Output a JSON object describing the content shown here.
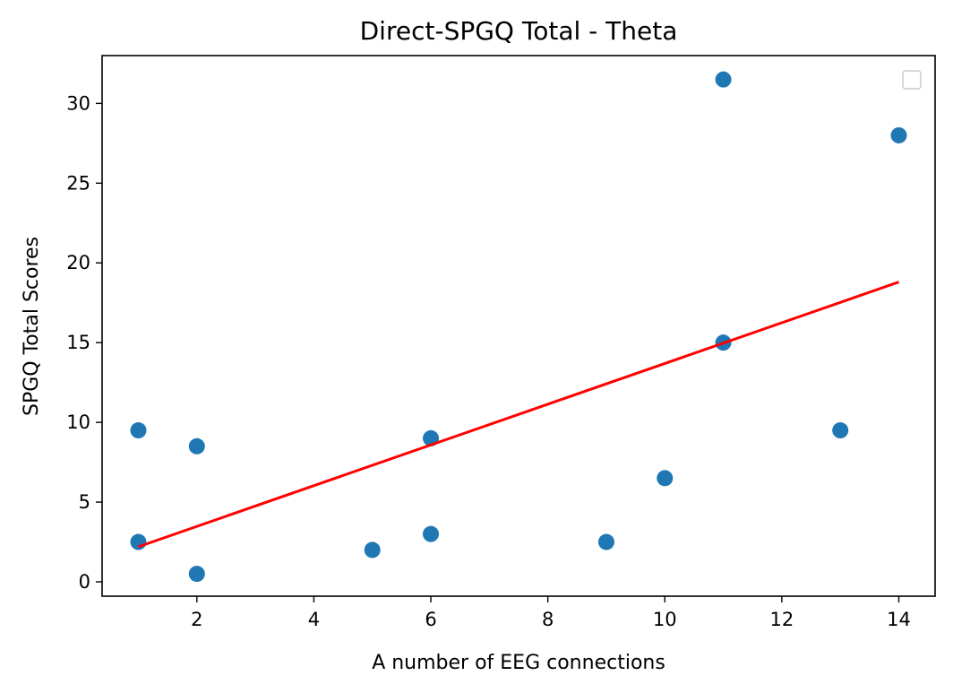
{
  "chart_data": {
    "type": "scatter",
    "title": "Direct-SPGQ Total - Theta",
    "xlabel": "A number of EEG connections",
    "ylabel": "SPGQ Total Scores",
    "xlim": [
      0.38,
      14.62
    ],
    "ylim": [
      -0.9,
      33.0
    ],
    "xticks": [
      2,
      4,
      6,
      8,
      10,
      12,
      14
    ],
    "yticks": [
      0,
      5,
      10,
      15,
      20,
      25,
      30
    ],
    "grid": false,
    "legend": "top-right, empty",
    "series": [
      {
        "type": "scatter",
        "color": "#1f77b4",
        "points": [
          {
            "x": 1,
            "y": 9.5
          },
          {
            "x": 1,
            "y": 2.5
          },
          {
            "x": 2,
            "y": 8.5
          },
          {
            "x": 2,
            "y": 0.5
          },
          {
            "x": 5,
            "y": 2.0
          },
          {
            "x": 6,
            "y": 9.0
          },
          {
            "x": 6,
            "y": 3.0
          },
          {
            "x": 9,
            "y": 2.5
          },
          {
            "x": 10,
            "y": 6.5
          },
          {
            "x": 11,
            "y": 31.5
          },
          {
            "x": 11,
            "y": 15.0
          },
          {
            "x": 13,
            "y": 9.5
          },
          {
            "x": 14,
            "y": 28.0
          }
        ]
      },
      {
        "type": "line",
        "color": "#ff0000",
        "points": [
          {
            "x": 1,
            "y": 2.2
          },
          {
            "x": 14,
            "y": 18.8
          }
        ]
      }
    ]
  }
}
